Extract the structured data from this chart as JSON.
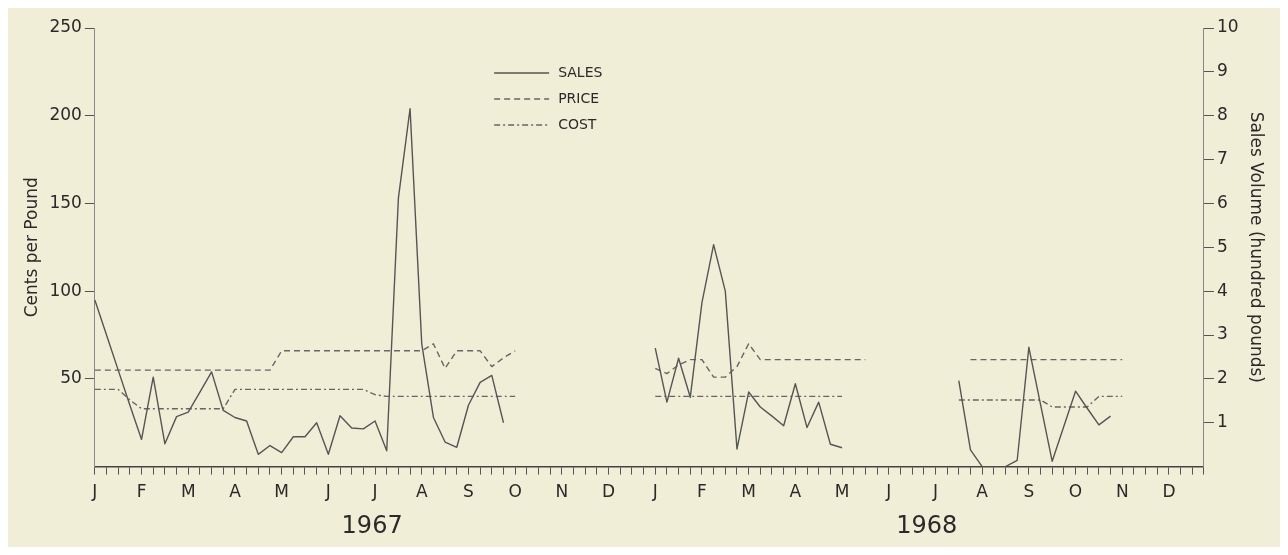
{
  "chart_data": {
    "type": "line",
    "ylabel": "Cents per Pound",
    "y2label": "Sales Volume (hundred pounds)",
    "legend": "top",
    "annotations": [
      "1967",
      "1968"
    ],
    "categories": [
      "J",
      null,
      null,
      null,
      "F",
      null,
      null,
      null,
      "M",
      null,
      null,
      null,
      "A",
      null,
      null,
      null,
      "M",
      null,
      null,
      null,
      "J",
      null,
      null,
      null,
      "J",
      null,
      null,
      null,
      "A",
      null,
      null,
      null,
      "S",
      null,
      null,
      null,
      "O",
      null,
      null,
      null,
      "N",
      null,
      null,
      null,
      "D",
      null,
      null,
      null,
      "J",
      null,
      null,
      null,
      "F",
      null,
      null,
      null,
      "M",
      null,
      null,
      null,
      "A",
      null,
      null,
      null,
      "M",
      null,
      null,
      null,
      "J",
      null,
      null,
      null,
      "J",
      null,
      null,
      null,
      "A",
      null,
      null,
      null,
      "S",
      null,
      null,
      null,
      "O",
      null,
      null,
      null,
      "N",
      null,
      null,
      null,
      "D",
      null,
      null,
      null
    ],
    "ylim": [
      0,
      250
    ],
    "yticks": [
      50,
      100,
      150,
      200,
      250
    ],
    "y2lim": [
      0,
      10
    ],
    "y2ticks": [
      1,
      2,
      3,
      4,
      5,
      6,
      7,
      8,
      9,
      10
    ],
    "series": [
      {
        "name": "SALES",
        "axis": "y2",
        "color": "#555555",
        "line_style": "solid",
        "values": [
          3.8,
          3.0,
          2.2,
          1.4,
          0.62,
          2.04,
          0.52,
          1.14,
          1.24,
          1.7,
          2.16,
          1.28,
          1.12,
          1.04,
          0.28,
          0.48,
          0.32,
          0.68,
          0.68,
          1.0,
          0.28,
          1.16,
          0.88,
          0.86,
          1.04,
          0.36,
          6.12,
          8.16,
          2.8,
          1.12,
          0.56,
          0.44,
          1.4,
          1.92,
          2.08,
          1.0,
          null,
          null,
          null,
          null,
          null,
          null,
          null,
          null,
          null,
          null,
          null,
          null,
          2.7,
          1.47,
          2.47,
          1.58,
          3.74,
          5.06,
          4.0,
          0.4,
          1.7,
          1.36,
          1.15,
          0.93,
          1.89,
          0.89,
          1.47,
          0.51,
          0.43,
          null,
          null,
          null,
          null,
          null,
          null,
          null,
          null,
          null,
          1.96,
          0.38,
          0,
          0,
          0,
          0.14,
          2.72,
          1.42,
          0.12,
          0.92,
          1.72,
          1.33,
          0.95,
          1.15,
          null,
          null,
          null,
          null,
          null,
          null,
          null,
          null
        ]
      },
      {
        "name": "PRICE",
        "color": "#666666",
        "line_style": "dashed",
        "values": [
          55,
          55,
          55,
          55,
          55,
          55,
          55,
          55,
          55,
          55,
          55,
          55,
          55,
          55,
          55,
          55,
          66,
          66,
          66,
          66,
          66,
          66,
          66,
          66,
          66,
          66,
          66,
          66,
          66,
          70,
          56,
          66,
          66,
          66,
          57,
          62,
          66,
          null,
          null,
          null,
          null,
          null,
          null,
          null,
          null,
          null,
          null,
          null,
          56,
          53,
          58,
          61,
          61,
          51,
          51,
          57,
          70,
          61,
          61,
          61,
          61,
          61,
          61,
          61,
          61,
          61,
          61,
          null,
          null,
          null,
          null,
          null,
          null,
          null,
          null,
          61,
          61,
          61,
          61,
          61,
          61,
          61,
          61,
          61,
          61,
          61,
          61,
          61,
          61,
          null,
          null,
          null,
          null,
          null,
          null,
          null
        ]
      },
      {
        "name": "COST",
        "color": "#666666",
        "line_style": "dashdot",
        "values": [
          44,
          44,
          44,
          38,
          33,
          33,
          33,
          33,
          33,
          33,
          33,
          33,
          44,
          44,
          44,
          44,
          44,
          44,
          44,
          44,
          44,
          44,
          44,
          44,
          41,
          40,
          40,
          40,
          40,
          40,
          40,
          40,
          40,
          40,
          40,
          40,
          40,
          null,
          null,
          null,
          null,
          null,
          null,
          null,
          null,
          null,
          null,
          null,
          40,
          40,
          40,
          40,
          40,
          40,
          40,
          40,
          40,
          40,
          40,
          40,
          40,
          40,
          40,
          40,
          40,
          null,
          null,
          null,
          null,
          null,
          null,
          null,
          null,
          null,
          38,
          38,
          38,
          38,
          38,
          38,
          38,
          38,
          34,
          34,
          34,
          34,
          40,
          40,
          40,
          null,
          null,
          null,
          null,
          null,
          null,
          null
        ]
      }
    ]
  }
}
